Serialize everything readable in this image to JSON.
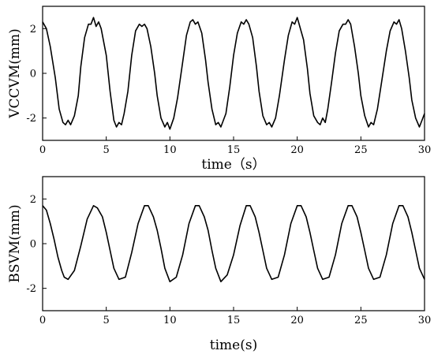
{
  "chart_data": [
    {
      "type": "line",
      "title": "",
      "xlabel": "time（s）",
      "ylabel": "VCCVM(mm)",
      "xlim": [
        0,
        30
      ],
      "ylim": [
        -3,
        3
      ],
      "xticks": [
        0,
        5,
        10,
        15,
        20,
        25,
        30
      ],
      "yticks": [
        -2,
        0,
        2
      ],
      "grid": false,
      "legend": "none",
      "line_color": "#000000",
      "series": [
        {
          "x": [
            0,
            0.3,
            0.6,
            1.0,
            1.3,
            1.6,
            1.8,
            2.0,
            2.2,
            2.5,
            2.8,
            3.0,
            3.3,
            3.6,
            3.8,
            4.0,
            4.2,
            4.4,
            4.6,
            5.0,
            5.3,
            5.6,
            5.8,
            6.0,
            6.2,
            6.4,
            6.7,
            7.0,
            7.3,
            7.6,
            7.8,
            8.0,
            8.2,
            8.5,
            8.8,
            9.0,
            9.3,
            9.6,
            9.8,
            10.0,
            10.3,
            10.6,
            11.0,
            11.3,
            11.6,
            11.8,
            12.0,
            12.2,
            12.5,
            12.8,
            13.0,
            13.3,
            13.6,
            13.8,
            14.0,
            14.2,
            14.4,
            14.7,
            15.0,
            15.3,
            15.6,
            15.8,
            16.0,
            16.2,
            16.5,
            16.8,
            17.0,
            17.3,
            17.6,
            17.8,
            18.0,
            18.3,
            18.6,
            19.0,
            19.3,
            19.6,
            19.8,
            20.0,
            20.2,
            20.5,
            20.8,
            21.0,
            21.3,
            21.6,
            21.8,
            22.0,
            22.2,
            22.4,
            22.7,
            23.0,
            23.3,
            23.6,
            23.8,
            24.0,
            24.2,
            24.5,
            24.8,
            25.0,
            25.3,
            25.6,
            25.8,
            26.0,
            26.3,
            26.6,
            27.0,
            27.3,
            27.6,
            27.8,
            28.0,
            28.2,
            28.5,
            28.8,
            29.0,
            29.3,
            29.6,
            29.8,
            30.0
          ],
          "y": [
            2.3,
            2.0,
            1.2,
            -0.2,
            -1.6,
            -2.2,
            -2.3,
            -2.1,
            -2.3,
            -1.9,
            -1.0,
            0.3,
            1.6,
            2.2,
            2.2,
            2.5,
            2.1,
            2.3,
            2.0,
            0.8,
            -0.8,
            -2.1,
            -2.4,
            -2.2,
            -2.3,
            -1.8,
            -0.8,
            0.8,
            1.9,
            2.2,
            2.1,
            2.2,
            2.0,
            1.2,
            0.0,
            -1.0,
            -2.0,
            -2.4,
            -2.2,
            -2.5,
            -2.0,
            -1.1,
            0.5,
            1.7,
            2.3,
            2.4,
            2.2,
            2.3,
            1.8,
            0.6,
            -0.4,
            -1.6,
            -2.3,
            -2.2,
            -2.4,
            -2.1,
            -1.8,
            -0.6,
            0.8,
            1.8,
            2.3,
            2.2,
            2.4,
            2.2,
            1.6,
            0.3,
            -0.8,
            -1.9,
            -2.3,
            -2.2,
            -2.4,
            -2.0,
            -1.0,
            0.6,
            1.7,
            2.3,
            2.2,
            2.5,
            2.1,
            1.5,
            0.2,
            -0.9,
            -1.9,
            -2.2,
            -2.3,
            -2.0,
            -2.2,
            -1.6,
            -0.4,
            0.9,
            1.9,
            2.2,
            2.2,
            2.4,
            2.2,
            1.2,
            0.0,
            -1.0,
            -1.9,
            -2.4,
            -2.2,
            -2.3,
            -1.6,
            -0.5,
            1.0,
            1.9,
            2.3,
            2.2,
            2.4,
            2.0,
            1.0,
            -0.2,
            -1.2,
            -2.0,
            -2.4,
            -2.1,
            -1.8
          ]
        }
      ]
    },
    {
      "type": "line",
      "title": "",
      "xlabel": "time(s)",
      "ylabel": "BSVM(mm)",
      "xlim": [
        0,
        30
      ],
      "ylim": [
        -3,
        3
      ],
      "xticks": [
        0,
        5,
        10,
        15,
        20,
        25,
        30
      ],
      "yticks": [
        -2,
        0,
        2
      ],
      "grid": false,
      "legend": "none",
      "line_color": "#000000",
      "series": [
        {
          "x": [
            0,
            0.3,
            0.6,
            0.9,
            1.2,
            1.5,
            1.7,
            2.0,
            2.5,
            3.0,
            3.5,
            4.0,
            4.3,
            4.7,
            5.0,
            5.3,
            5.6,
            6.0,
            6.5,
            7.0,
            7.5,
            8.0,
            8.3,
            8.7,
            9.0,
            9.3,
            9.6,
            10.0,
            10.5,
            11.0,
            11.5,
            12.0,
            12.3,
            12.7,
            13.0,
            13.3,
            13.6,
            14.0,
            14.5,
            15.0,
            15.5,
            16.0,
            16.3,
            16.7,
            17.0,
            17.3,
            17.6,
            18.0,
            18.5,
            19.0,
            19.5,
            20.0,
            20.3,
            20.7,
            21.0,
            21.3,
            21.6,
            22.0,
            22.5,
            23.0,
            23.5,
            24.0,
            24.3,
            24.7,
            25.0,
            25.3,
            25.6,
            26.0,
            26.5,
            27.0,
            27.5,
            28.0,
            28.3,
            28.7,
            29.0,
            29.3,
            29.6,
            30.0
          ],
          "y": [
            1.7,
            1.5,
            0.9,
            0.2,
            -0.6,
            -1.2,
            -1.5,
            -1.6,
            -1.2,
            -0.1,
            1.1,
            1.7,
            1.6,
            1.2,
            0.5,
            -0.3,
            -1.1,
            -1.6,
            -1.5,
            -0.4,
            0.9,
            1.7,
            1.7,
            1.2,
            0.6,
            -0.2,
            -1.1,
            -1.7,
            -1.5,
            -0.5,
            0.9,
            1.7,
            1.7,
            1.2,
            0.6,
            -0.3,
            -1.1,
            -1.7,
            -1.4,
            -0.5,
            0.8,
            1.7,
            1.7,
            1.2,
            0.5,
            -0.3,
            -1.1,
            -1.6,
            -1.5,
            -0.5,
            0.9,
            1.7,
            1.7,
            1.2,
            0.5,
            -0.3,
            -1.1,
            -1.6,
            -1.5,
            -0.5,
            0.9,
            1.7,
            1.7,
            1.2,
            0.5,
            -0.3,
            -1.1,
            -1.6,
            -1.5,
            -0.5,
            0.9,
            1.7,
            1.7,
            1.2,
            0.5,
            -0.3,
            -1.1,
            -1.6
          ]
        }
      ]
    }
  ]
}
